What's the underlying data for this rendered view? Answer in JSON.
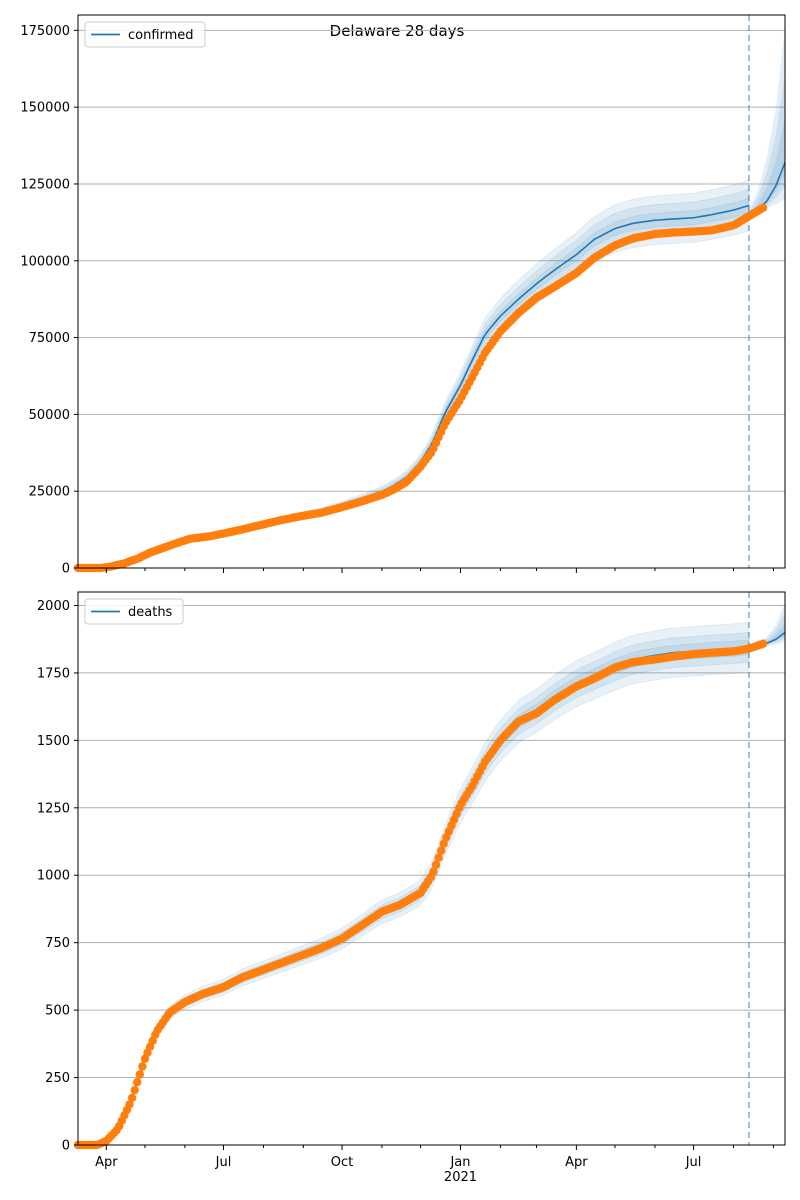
{
  "title": "Delaware 28 days",
  "x_tick_labels": [
    {
      "label": "Apr",
      "date": "2020-04-01"
    },
    {
      "label": "Jul",
      "date": "2020-07-01"
    },
    {
      "label": "Oct",
      "date": "2020-10-01"
    },
    {
      "label": "Jan",
      "date": "2021-01-01"
    },
    {
      "label": "Apr",
      "date": "2021-04-01"
    },
    {
      "label": "Jul",
      "date": "2021-07-01"
    }
  ],
  "x_year_label": "2021",
  "x_range": [
    "2020-03-10",
    "2021-09-10"
  ],
  "forecast_start": "2021-08-13",
  "colors": {
    "model": "#1f77b4",
    "observed": "#ff7f0e",
    "grid": "#b0b0b0"
  },
  "chart_data": [
    {
      "type": "line",
      "legend": "confirmed",
      "legend_position": "upper-left",
      "grid": "horizontal",
      "ylim": [
        0,
        180000
      ],
      "yticks": [
        0,
        25000,
        50000,
        75000,
        100000,
        125000,
        150000,
        175000
      ],
      "observed": {
        "x": [
          "2020-03-10",
          "2020-03-28",
          "2020-04-05",
          "2020-04-15",
          "2020-04-25",
          "2020-05-05",
          "2020-05-15",
          "2020-05-25",
          "2020-06-05",
          "2020-06-20",
          "2020-07-01",
          "2020-07-15",
          "2020-08-01",
          "2020-08-15",
          "2020-09-01",
          "2020-09-15",
          "2020-10-01",
          "2020-10-15",
          "2020-11-01",
          "2020-11-10",
          "2020-11-20",
          "2020-12-01",
          "2020-12-10",
          "2020-12-20",
          "2021-01-01",
          "2021-01-10",
          "2021-01-20",
          "2021-02-01",
          "2021-02-15",
          "2021-03-01",
          "2021-03-15",
          "2021-04-01",
          "2021-04-15",
          "2021-05-01",
          "2021-05-15",
          "2021-06-01",
          "2021-06-15",
          "2021-07-01",
          "2021-07-15",
          "2021-08-01",
          "2021-08-13",
          "2021-08-25"
        ],
        "y": [
          0,
          0,
          500,
          1500,
          3000,
          5000,
          6500,
          8000,
          9500,
          10300,
          11200,
          12500,
          14200,
          15600,
          17000,
          18000,
          19800,
          21500,
          23800,
          25500,
          28000,
          33000,
          38000,
          47000,
          55000,
          62000,
          70000,
          77000,
          83000,
          88000,
          91500,
          96000,
          101000,
          105000,
          107300,
          108700,
          109200,
          109500,
          109900,
          111500,
          114500,
          117500
        ]
      },
      "model": {
        "x": [
          "2020-03-10",
          "2020-03-28",
          "2020-04-05",
          "2020-04-15",
          "2020-04-25",
          "2020-05-05",
          "2020-05-15",
          "2020-05-25",
          "2020-06-05",
          "2020-06-20",
          "2020-07-01",
          "2020-07-15",
          "2020-08-01",
          "2020-08-15",
          "2020-09-01",
          "2020-09-15",
          "2020-10-01",
          "2020-10-15",
          "2020-11-01",
          "2020-11-10",
          "2020-11-20",
          "2020-12-01",
          "2020-12-10",
          "2020-12-20",
          "2021-01-01",
          "2021-01-10",
          "2021-01-20",
          "2021-02-01",
          "2021-02-15",
          "2021-03-01",
          "2021-03-15",
          "2021-04-01",
          "2021-04-15",
          "2021-05-01",
          "2021-05-15",
          "2021-06-01",
          "2021-06-15",
          "2021-07-01",
          "2021-07-15",
          "2021-08-01",
          "2021-08-13"
        ],
        "y": [
          0,
          0,
          500,
          1500,
          3000,
          5000,
          6500,
          8000,
          9500,
          10300,
          11200,
          12500,
          14200,
          15600,
          17000,
          18300,
          20300,
          22200,
          24800,
          26800,
          29500,
          34500,
          40500,
          50500,
          59500,
          67500,
          76000,
          82000,
          87500,
          92500,
          97000,
          102000,
          107000,
          110500,
          112200,
          113200,
          113600,
          114000,
          115000,
          116500,
          118000
        ]
      },
      "forecast": {
        "x": [
          "2021-08-13",
          "2021-08-20",
          "2021-08-27",
          "2021-09-03",
          "2021-09-10"
        ],
        "y": [
          115000,
          116500,
          119500,
          124500,
          132000
        ],
        "upper": [
          116500,
          123000,
          134000,
          150000,
          176000
        ],
        "lower": [
          114000,
          115500,
          117000,
          118500,
          120000
        ]
      },
      "band_widths": [
        0.02,
        0.045,
        0.07
      ]
    },
    {
      "type": "line",
      "legend": "deaths",
      "legend_position": "upper-left",
      "grid": "horizontal",
      "ylim": [
        0,
        2050
      ],
      "yticks": [
        0,
        250,
        500,
        750,
        1000,
        1250,
        1500,
        1750,
        2000
      ],
      "observed": {
        "x": [
          "2020-03-10",
          "2020-03-25",
          "2020-04-01",
          "2020-04-10",
          "2020-04-20",
          "2020-05-01",
          "2020-05-10",
          "2020-05-20",
          "2020-06-01",
          "2020-06-15",
          "2020-07-01",
          "2020-07-15",
          "2020-08-01",
          "2020-08-15",
          "2020-09-01",
          "2020-09-15",
          "2020-10-01",
          "2020-10-15",
          "2020-11-01",
          "2020-11-15",
          "2020-12-01",
          "2020-12-10",
          "2020-12-20",
          "2021-01-01",
          "2021-01-10",
          "2021-01-20",
          "2021-02-01",
          "2021-02-15",
          "2021-03-01",
          "2021-03-15",
          "2021-04-01",
          "2021-04-15",
          "2021-05-01",
          "2021-05-15",
          "2021-06-01",
          "2021-06-15",
          "2021-07-01",
          "2021-07-15",
          "2021-08-01",
          "2021-08-13",
          "2021-08-25"
        ],
        "y": [
          0,
          0,
          15,
          60,
          160,
          320,
          420,
          490,
          530,
          560,
          585,
          620,
          650,
          675,
          705,
          730,
          765,
          810,
          865,
          890,
          935,
          1000,
          1130,
          1260,
          1330,
          1420,
          1500,
          1570,
          1600,
          1650,
          1700,
          1730,
          1770,
          1790,
          1800,
          1810,
          1820,
          1825,
          1830,
          1840,
          1860
        ]
      },
      "model": {
        "x": [
          "2020-03-10",
          "2020-03-25",
          "2020-04-01",
          "2020-04-10",
          "2020-04-20",
          "2020-05-01",
          "2020-05-10",
          "2020-05-20",
          "2020-06-01",
          "2020-06-15",
          "2020-07-01",
          "2020-07-15",
          "2020-08-01",
          "2020-08-15",
          "2020-09-01",
          "2020-09-15",
          "2020-10-01",
          "2020-10-15",
          "2020-11-01",
          "2020-11-15",
          "2020-12-01",
          "2020-12-10",
          "2020-12-20",
          "2021-01-01",
          "2021-01-10",
          "2021-01-20",
          "2021-02-01",
          "2021-02-15",
          "2021-03-01",
          "2021-03-15",
          "2021-04-01",
          "2021-04-15",
          "2021-05-01",
          "2021-05-15",
          "2021-06-01",
          "2021-06-15",
          "2021-07-01",
          "2021-07-15",
          "2021-08-01",
          "2021-08-13"
        ],
        "y": [
          0,
          0,
          15,
          60,
          160,
          320,
          420,
          490,
          530,
          560,
          585,
          620,
          650,
          675,
          705,
          730,
          765,
          810,
          865,
          890,
          935,
          1000,
          1130,
          1260,
          1330,
          1420,
          1500,
          1570,
          1610,
          1660,
          1710,
          1740,
          1775,
          1800,
          1815,
          1825,
          1830,
          1835,
          1840,
          1845
        ]
      },
      "forecast": {
        "x": [
          "2021-08-13",
          "2021-08-20",
          "2021-08-27",
          "2021-09-03",
          "2021-09-10"
        ],
        "y": [
          1845,
          1850,
          1860,
          1875,
          1900
        ],
        "upper": [
          1850,
          1860,
          1885,
          1930,
          2010
        ],
        "lower": [
          1840,
          1845,
          1850,
          1855,
          1865
        ]
      },
      "band_widths": [
        0.015,
        0.03,
        0.05
      ]
    }
  ]
}
